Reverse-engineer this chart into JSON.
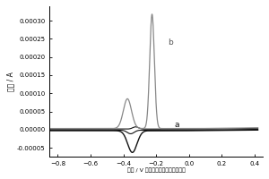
{
  "title": "",
  "xlabel": "电位 / V （相对氧化铝复合比电极）",
  "ylabel": "电流 / A",
  "xlim": [
    -0.85,
    0.45
  ],
  "ylim": [
    -7.5e-05,
    0.00034
  ],
  "xticks": [
    -0.8,
    -0.6,
    -0.4,
    -0.2,
    0.0,
    0.2,
    0.4
  ],
  "yticks": [
    -5e-05,
    0.0,
    5e-05,
    0.0001,
    0.00015,
    0.0002,
    0.00025,
    0.0003
  ],
  "curve_a_color": "#111111",
  "curve_b_color": "#888888",
  "curve_b_cathodic_color": "#111111",
  "label_a": "a",
  "label_b": "b",
  "background_color": "#ffffff"
}
